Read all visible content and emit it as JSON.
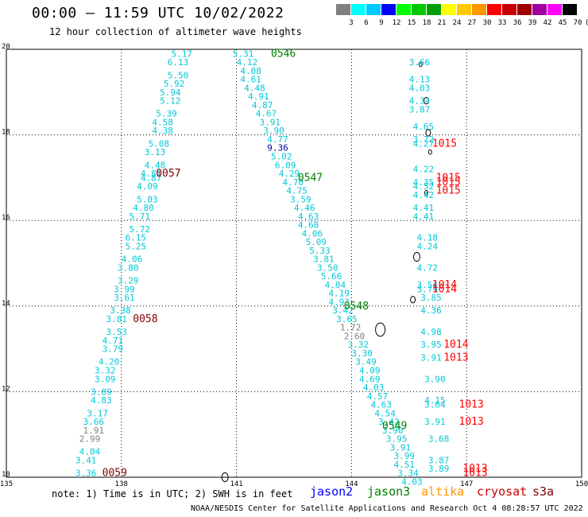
{
  "header": {
    "title": "00:00 – 11:59 UTC 10/02/2022",
    "subtitle": "12 hour collection of altimeter wave heights"
  },
  "color_scale": {
    "labels": [
      "3",
      "6",
      "9",
      "12",
      "15",
      "18",
      "21",
      "24",
      "27",
      "30",
      "33",
      "36",
      "39",
      "42",
      "45",
      "70",
      "(ft)"
    ],
    "colors": [
      "#808080",
      "#00ffff",
      "#00c8ff",
      "#0000ff",
      "#00ff00",
      "#00c800",
      "#00a000",
      "#ffff00",
      "#ffc800",
      "#ff9600",
      "#ff0000",
      "#c80000",
      "#a00000",
      "#a000a0",
      "#ff00ff",
      "#000000"
    ]
  },
  "axes": {
    "x_ticks": [
      "135",
      "138",
      "141",
      "144",
      "147",
      "150"
    ],
    "y_ticks": [
      "20",
      "18",
      "16",
      "14",
      "12",
      "10"
    ]
  },
  "map_data": {
    "pass_labels": [
      {
        "text": "0546",
        "lon": 141.9,
        "lat": 19.9,
        "color": "#008000"
      },
      {
        "text": "0547",
        "lon": 142.6,
        "lat": 17.0,
        "color": "#008000"
      },
      {
        "text": "0548",
        "lon": 143.8,
        "lat": 14.0,
        "color": "#008000"
      },
      {
        "text": "0549",
        "lon": 144.8,
        "lat": 11.2,
        "color": "#008000"
      },
      {
        "text": "0057",
        "lon": 138.9,
        "lat": 17.1,
        "color": "#800000"
      },
      {
        "text": "0058",
        "lon": 138.3,
        "lat": 13.7,
        "color": "#800000"
      },
      {
        "text": "0059",
        "lon": 137.5,
        "lat": 10.1,
        "color": "#800000"
      }
    ],
    "s3a_labels": [
      {
        "text": "1015",
        "lon": 146.1,
        "lat": 17.8
      },
      {
        "text": "1015",
        "lon": 146.2,
        "lat": 17.0
      },
      {
        "text": "1015",
        "lon": 146.2,
        "lat": 16.9
      },
      {
        "text": "1015",
        "lon": 146.2,
        "lat": 16.7
      },
      {
        "text": "1014",
        "lon": 146.1,
        "lat": 14.5
      },
      {
        "text": "1014",
        "lon": 146.1,
        "lat": 14.4
      },
      {
        "text": "1014",
        "lon": 146.4,
        "lat": 13.1
      },
      {
        "text": "1013",
        "lon": 146.4,
        "lat": 12.8
      },
      {
        "text": "1013",
        "lon": 146.8,
        "lat": 11.7
      },
      {
        "text": "1013",
        "lon": 146.8,
        "lat": 11.3
      },
      {
        "text": "1013",
        "lon": 146.9,
        "lat": 10.2
      },
      {
        "text": "1013",
        "lon": 146.9,
        "lat": 10.1
      }
    ],
    "track_a": [
      {
        "v": "5.17",
        "lon": 139.3,
        "lat": 19.9
      },
      {
        "v": "6.13",
        "lon": 139.2,
        "lat": 19.7
      },
      {
        "v": "5.50",
        "lon": 139.2,
        "lat": 19.4
      },
      {
        "v": "5.92",
        "lon": 139.1,
        "lat": 19.2
      },
      {
        "v": "5.94",
        "lon": 139.0,
        "lat": 19.0
      },
      {
        "v": "5.12",
        "lon": 139.0,
        "lat": 18.8
      },
      {
        "v": "5.39",
        "lon": 138.9,
        "lat": 18.5
      },
      {
        "v": "4.58",
        "lon": 138.8,
        "lat": 18.3
      },
      {
        "v": "4.38",
        "lon": 138.8,
        "lat": 18.1
      },
      {
        "v": "5.08",
        "lon": 138.7,
        "lat": 17.8
      },
      {
        "v": "3.13",
        "lon": 138.6,
        "lat": 17.6
      },
      {
        "v": "4.48",
        "lon": 138.6,
        "lat": 17.3
      },
      {
        "v": "4.81",
        "lon": 138.5,
        "lat": 17.1
      },
      {
        "v": "4.87",
        "lon": 138.5,
        "lat": 17.0
      },
      {
        "v": "4.09",
        "lon": 138.4,
        "lat": 16.8
      },
      {
        "v": "5.03",
        "lon": 138.4,
        "lat": 16.5
      },
      {
        "v": "4.80",
        "lon": 138.3,
        "lat": 16.3
      },
      {
        "v": "5.71",
        "lon": 138.2,
        "lat": 16.1
      },
      {
        "v": "5.72",
        "lon": 138.2,
        "lat": 15.8
      },
      {
        "v": "6.15",
        "lon": 138.1,
        "lat": 15.6
      },
      {
        "v": "5.25",
        "lon": 138.1,
        "lat": 15.4
      },
      {
        "v": "4.06",
        "lon": 138.0,
        "lat": 15.1
      },
      {
        "v": "3.80",
        "lon": 137.9,
        "lat": 14.9
      },
      {
        "v": "3.29",
        "lon": 137.9,
        "lat": 14.6
      },
      {
        "v": "3.99",
        "lon": 137.8,
        "lat": 14.4
      },
      {
        "v": "3.61",
        "lon": 137.8,
        "lat": 14.2
      },
      {
        "v": "3.38",
        "lon": 137.7,
        "lat": 13.9
      },
      {
        "v": "3.81",
        "lon": 137.6,
        "lat": 13.7
      },
      {
        "v": "3.53",
        "lon": 137.6,
        "lat": 13.4
      },
      {
        "v": "4.71",
        "lon": 137.5,
        "lat": 13.2
      },
      {
        "v": "3.79",
        "lon": 137.5,
        "lat": 13.0
      },
      {
        "v": "4.20",
        "lon": 137.4,
        "lat": 12.7
      },
      {
        "v": "3.32",
        "lon": 137.3,
        "lat": 12.5
      },
      {
        "v": "3.09",
        "lon": 137.3,
        "lat": 12.3
      },
      {
        "v": "3.89",
        "lon": 137.2,
        "lat": 12.0
      },
      {
        "v": "4.83",
        "lon": 137.2,
        "lat": 11.8
      },
      {
        "v": "3.17",
        "lon": 137.1,
        "lat": 11.5
      },
      {
        "v": "3.66",
        "lon": 137.0,
        "lat": 11.3
      },
      {
        "v": "1.91",
        "lon": 137.0,
        "lat": 11.1,
        "gray": true
      },
      {
        "v": "2.99",
        "lon": 136.9,
        "lat": 10.9,
        "gray": true
      },
      {
        "v": "4.04",
        "lon": 136.9,
        "lat": 10.6
      },
      {
        "v": "3.41",
        "lon": 136.8,
        "lat": 10.4
      },
      {
        "v": "3.36",
        "lon": 136.8,
        "lat": 10.1
      }
    ],
    "track_b": [
      {
        "v": "5.31",
        "lon": 140.9,
        "lat": 19.9
      },
      {
        "v": "4.12",
        "lon": 141.0,
        "lat": 19.7
      },
      {
        "v": "4.08",
        "lon": 141.1,
        "lat": 19.5
      },
      {
        "v": "4.61",
        "lon": 141.1,
        "lat": 19.3
      },
      {
        "v": "4.48",
        "lon": 141.2,
        "lat": 19.1
      },
      {
        "v": "4.91",
        "lon": 141.3,
        "lat": 18.9
      },
      {
        "v": "4.87",
        "lon": 141.4,
        "lat": 18.7
      },
      {
        "v": "4.67",
        "lon": 141.5,
        "lat": 18.5
      },
      {
        "v": "3.91",
        "lon": 141.6,
        "lat": 18.3
      },
      {
        "v": "3.90",
        "lon": 141.7,
        "lat": 18.1
      },
      {
        "v": "4.77",
        "lon": 141.8,
        "lat": 17.9
      },
      {
        "v": "9.36",
        "lon": 141.8,
        "lat": 17.7,
        "dark": true
      },
      {
        "v": "5.02",
        "lon": 141.9,
        "lat": 17.5
      },
      {
        "v": "6.09",
        "lon": 142.0,
        "lat": 17.3
      },
      {
        "v": "4.29",
        "lon": 142.1,
        "lat": 17.1
      },
      {
        "v": "4.70",
        "lon": 142.2,
        "lat": 16.9
      },
      {
        "v": "4.75",
        "lon": 142.3,
        "lat": 16.7
      },
      {
        "v": "3.59",
        "lon": 142.4,
        "lat": 16.5
      },
      {
        "v": "4.46",
        "lon": 142.5,
        "lat": 16.3
      },
      {
        "v": "4.63",
        "lon": 142.6,
        "lat": 16.1
      },
      {
        "v": "4.68",
        "lon": 142.6,
        "lat": 15.9
      },
      {
        "v": "4.06",
        "lon": 142.7,
        "lat": 15.7
      },
      {
        "v": "5.09",
        "lon": 142.8,
        "lat": 15.5
      },
      {
        "v": "5.33",
        "lon": 142.9,
        "lat": 15.3
      },
      {
        "v": "3.81",
        "lon": 143.0,
        "lat": 15.1
      },
      {
        "v": "3.50",
        "lon": 143.1,
        "lat": 14.9
      },
      {
        "v": "5.66",
        "lon": 143.2,
        "lat": 14.7
      },
      {
        "v": "4.04",
        "lon": 143.3,
        "lat": 14.5
      },
      {
        "v": "4.19",
        "lon": 143.4,
        "lat": 14.3
      },
      {
        "v": "4.93",
        "lon": 143.4,
        "lat": 14.1
      },
      {
        "v": "3.42",
        "lon": 143.5,
        "lat": 13.9
      },
      {
        "v": "3.65",
        "lon": 143.6,
        "lat": 13.7
      },
      {
        "v": "1.72",
        "lon": 143.7,
        "lat": 13.5,
        "gray": true
      },
      {
        "v": "2.60",
        "lon": 143.8,
        "lat": 13.3,
        "gray": true
      },
      {
        "v": "3.32",
        "lon": 143.9,
        "lat": 13.1
      },
      {
        "v": "3.30",
        "lon": 144.0,
        "lat": 12.9
      },
      {
        "v": "3.49",
        "lon": 144.1,
        "lat": 12.7
      },
      {
        "v": "4.09",
        "lon": 144.2,
        "lat": 12.5
      },
      {
        "v": "4.69",
        "lon": 144.2,
        "lat": 12.3
      },
      {
        "v": "4.03",
        "lon": 144.3,
        "lat": 12.1
      },
      {
        "v": "4.57",
        "lon": 144.4,
        "lat": 11.9
      },
      {
        "v": "4.63",
        "lon": 144.5,
        "lat": 11.7
      },
      {
        "v": "4.54",
        "lon": 144.6,
        "lat": 11.5
      },
      {
        "v": "3.42",
        "lon": 144.7,
        "lat": 11.3
      },
      {
        "v": "3.90",
        "lon": 144.8,
        "lat": 11.1
      },
      {
        "v": "3.95",
        "lon": 144.9,
        "lat": 10.9
      },
      {
        "v": "3.91",
        "lon": 145.0,
        "lat": 10.7
      },
      {
        "v": "3.99",
        "lon": 145.1,
        "lat": 10.5
      },
      {
        "v": "4.51",
        "lon": 145.1,
        "lat": 10.3
      },
      {
        "v": "3.34",
        "lon": 145.2,
        "lat": 10.1
      },
      {
        "v": "4.03",
        "lon": 145.3,
        "lat": 9.9
      }
    ],
    "track_c": [
      {
        "v": "3.66",
        "lon": 145.5,
        "lat": 19.7
      },
      {
        "v": "4.13",
        "lon": 145.5,
        "lat": 19.3
      },
      {
        "v": "4.03",
        "lon": 145.5,
        "lat": 19.1
      },
      {
        "v": "4.34",
        "lon": 145.5,
        "lat": 18.8
      },
      {
        "v": "3.87",
        "lon": 145.5,
        "lat": 18.6
      },
      {
        "v": "4.65",
        "lon": 145.6,
        "lat": 18.2
      },
      {
        "v": "3.72",
        "lon": 145.6,
        "lat": 17.9
      },
      {
        "v": "4.27",
        "lon": 145.6,
        "lat": 17.8
      },
      {
        "v": "4.22",
        "lon": 145.6,
        "lat": 17.2
      },
      {
        "v": "4.35",
        "lon": 145.6,
        "lat": 16.9
      },
      {
        "v": "4.52",
        "lon": 145.6,
        "lat": 16.8
      },
      {
        "v": "4.42",
        "lon": 145.6,
        "lat": 16.6
      },
      {
        "v": "4.41",
        "lon": 145.6,
        "lat": 16.3
      },
      {
        "v": "4.41",
        "lon": 145.6,
        "lat": 16.1
      },
      {
        "v": "4.18",
        "lon": 145.7,
        "lat": 15.6
      },
      {
        "v": "4.24",
        "lon": 145.7,
        "lat": 15.4
      },
      {
        "v": "4.72",
        "lon": 145.7,
        "lat": 14.9
      },
      {
        "v": "3.54",
        "lon": 145.7,
        "lat": 14.5
      },
      {
        "v": "3.79",
        "lon": 145.7,
        "lat": 14.4
      },
      {
        "v": "3.85",
        "lon": 145.8,
        "lat": 14.2
      },
      {
        "v": "4.36",
        "lon": 145.8,
        "lat": 13.9
      },
      {
        "v": "4.98",
        "lon": 145.8,
        "lat": 13.4
      },
      {
        "v": "3.95",
        "lon": 145.8,
        "lat": 13.1
      },
      {
        "v": "3.91",
        "lon": 145.8,
        "lat": 12.8
      },
      {
        "v": "3.90",
        "lon": 145.9,
        "lat": 12.3
      },
      {
        "v": "4.15",
        "lon": 145.9,
        "lat": 11.8
      },
      {
        "v": "3.64",
        "lon": 145.9,
        "lat": 11.7
      },
      {
        "v": "3.91",
        "lon": 145.9,
        "lat": 11.3
      },
      {
        "v": "3.68",
        "lon": 146.0,
        "lat": 10.9
      },
      {
        "v": "3.87",
        "lon": 146.0,
        "lat": 10.4
      },
      {
        "v": "3.89",
        "lon": 146.0,
        "lat": 10.2
      }
    ]
  },
  "footer": {
    "note": "note: 1) Time is in UTC; 2) SWH is in feet",
    "satellites": [
      {
        "name": "jason2",
        "color": "#0000ff"
      },
      {
        "name": "jason3",
        "color": "#008000"
      },
      {
        "name": "altika",
        "color": "#ff9600"
      },
      {
        "name": "cryosat",
        "color": "#c80000"
      },
      {
        "name": "s3a",
        "color": "#800000"
      }
    ],
    "credit": "NOAA/NESDIS Center for Satellite Applications and Research   Oct  4 08:28:57 UTC 2022"
  }
}
